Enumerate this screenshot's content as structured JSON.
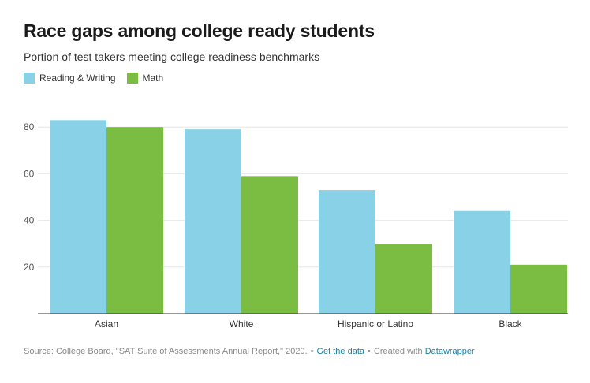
{
  "title": "Race gaps among college ready students",
  "subtitle": "Portion of test takers meeting college readiness benchmarks",
  "legend": [
    {
      "label": "Reading & Writing",
      "color": "#88d1e6"
    },
    {
      "label": "Math",
      "color": "#7bbd42"
    }
  ],
  "footer": {
    "source": "Source: College Board, \"SAT Suite of Assessments Annual Report,\" 2020.",
    "sep1": "•",
    "get_data": "Get the data",
    "sep2": "•",
    "created": "Created with",
    "datawrapper": "Datawrapper"
  },
  "chart_data": {
    "type": "bar",
    "title": "Race gaps among college ready students",
    "subtitle": "Portion of test takers meeting college readiness benchmarks",
    "categories": [
      "Asian",
      "White",
      "Hispanic or Latino",
      "Black"
    ],
    "series": [
      {
        "name": "Reading & Writing",
        "color": "#88d1e6",
        "values": [
          83,
          79,
          53,
          44
        ]
      },
      {
        "name": "Math",
        "color": "#7bbd42",
        "values": [
          80,
          59,
          30,
          21
        ]
      }
    ],
    "yticks": [
      20,
      40,
      60,
      80
    ],
    "ylim": [
      0,
      90
    ],
    "grid": true,
    "xlabel": "",
    "ylabel": ""
  }
}
